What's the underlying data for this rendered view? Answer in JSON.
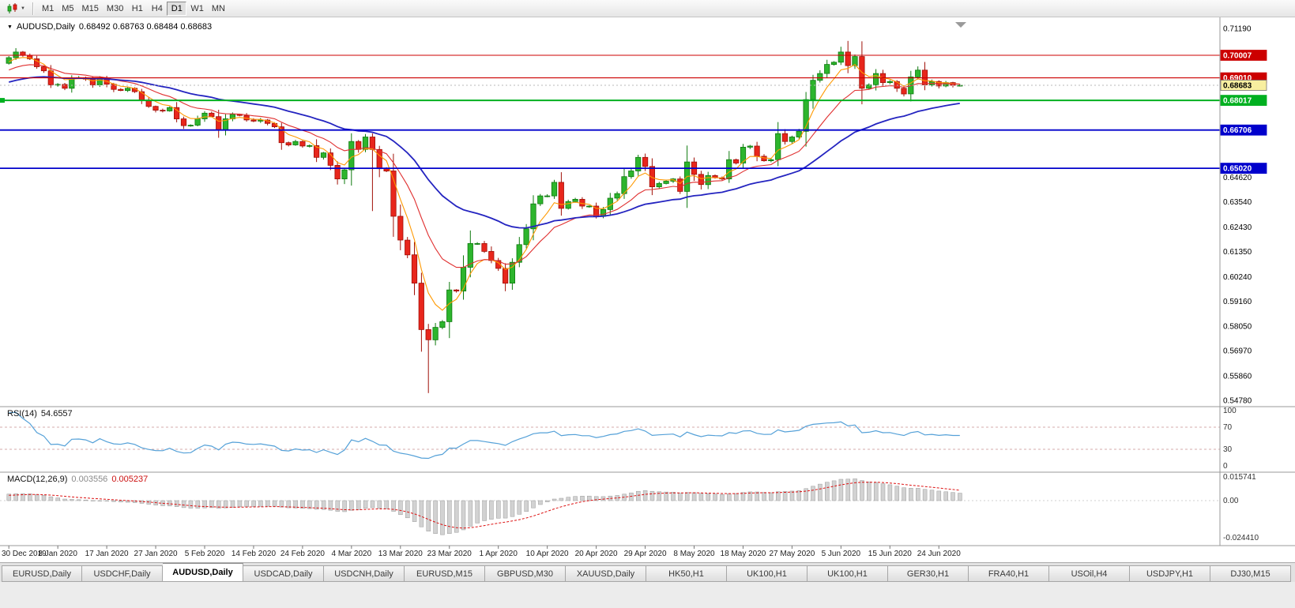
{
  "toolbar": {
    "periods": [
      "M1",
      "M5",
      "M15",
      "M30",
      "H1",
      "H4",
      "D1",
      "W1",
      "MN"
    ],
    "active_period": "D1"
  },
  "chart": {
    "title": "AUDUSD,Daily",
    "ohlc": "0.68492 0.68763 0.68484 0.68683"
  },
  "chart_data": {
    "type": "candlestick",
    "symbol": "AUDUSD",
    "timeframe": "Daily",
    "x_labels": [
      "30 Dec 2019",
      "8 Jan 2020",
      "17 Jan 2020",
      "27 Jan 2020",
      "5 Feb 2020",
      "14 Feb 2020",
      "24 Feb 2020",
      "4 Mar 2020",
      "13 Mar 2020",
      "23 Mar 2020",
      "1 Apr 2020",
      "10 Apr 2020",
      "20 Apr 2020",
      "29 Apr 2020",
      "8 May 2020",
      "18 May 2020",
      "27 May 2020",
      "5 Jun 2020",
      "15 Jun 2020",
      "24 Jun 2020"
    ],
    "x_label_every": 7,
    "first_open": 0.6965,
    "closes": [
      0.699,
      0.7015,
      0.7,
      0.6985,
      0.695,
      0.6932,
      0.687,
      0.6872,
      0.6855,
      0.69,
      0.6902,
      0.6895,
      0.687,
      0.69,
      0.6873,
      0.685,
      0.6845,
      0.6855,
      0.684,
      0.68,
      0.6775,
      0.6758,
      0.6755,
      0.677,
      0.672,
      0.669,
      0.6692,
      0.672,
      0.6745,
      0.673,
      0.667,
      0.672,
      0.674,
      0.6735,
      0.6715,
      0.671,
      0.6715,
      0.67,
      0.6685,
      0.6615,
      0.6605,
      0.662,
      0.66,
      0.6602,
      0.655,
      0.657,
      0.6515,
      0.6455,
      0.6495,
      0.662,
      0.6585,
      0.664,
      0.6585,
      0.65,
      0.649,
      0.629,
      0.6185,
      0.612,
      0.5995,
      0.579,
      0.5745,
      0.58,
      0.5825,
      0.5965,
      0.596,
      0.6065,
      0.617,
      0.617,
      0.6135,
      0.6095,
      0.606,
      0.5995,
      0.6087,
      0.6165,
      0.6235,
      0.6345,
      0.638,
      0.638,
      0.644,
      0.6325,
      0.6355,
      0.6365,
      0.6335,
      0.6335,
      0.629,
      0.632,
      0.637,
      0.639,
      0.6465,
      0.649,
      0.655,
      0.651,
      0.642,
      0.6435,
      0.6445,
      0.6455,
      0.64,
      0.653,
      0.6475,
      0.643,
      0.647,
      0.646,
      0.6455,
      0.654,
      0.6525,
      0.6595,
      0.66,
      0.6555,
      0.6535,
      0.654,
      0.6655,
      0.662,
      0.664,
      0.6665,
      0.6805,
      0.689,
      0.692,
      0.696,
      0.697,
      0.7015,
      0.6955,
      0.6995,
      0.6855,
      0.687,
      0.692,
      0.688,
      0.6885,
      0.6855,
      0.683,
      0.6905,
      0.6935,
      0.687,
      0.6885,
      0.6865,
      0.688,
      0.6868,
      0.68683
    ],
    "history_closes": [
      0.684,
      0.6835,
      0.683,
      0.6825,
      0.682,
      0.6815,
      0.681,
      0.6805,
      0.68,
      0.6795,
      0.679,
      0.6788,
      0.6785,
      0.678,
      0.6778,
      0.6775,
      0.6772,
      0.677,
      0.6768,
      0.6765,
      0.6762,
      0.676,
      0.6765,
      0.677,
      0.6775,
      0.678,
      0.6785,
      0.679,
      0.6795,
      0.68,
      0.6805,
      0.681,
      0.6815,
      0.682,
      0.6825,
      0.683,
      0.684,
      0.6845,
      0.685,
      0.6855,
      0.686,
      0.6865,
      0.687,
      0.688,
      0.689,
      0.69,
      0.691,
      0.692,
      0.693,
      0.694,
      0.695,
      0.696,
      0.6975,
      0.6985
    ],
    "wick_overrides": {
      "1": {
        "high": 0.7032
      },
      "52": {
        "low": 0.6313
      },
      "60": {
        "low": 0.551
      },
      "120": {
        "high": 0.7064
      }
    },
    "y_axis": {
      "max": 0.7119,
      "min": 0.5478,
      "ticks": [
        "0.71190",
        "0.64620",
        "0.63540",
        "0.62430",
        "0.61350",
        "0.60240",
        "0.59160",
        "0.58050",
        "0.56970",
        "0.55860",
        "0.54780"
      ]
    },
    "h_lines": [
      {
        "price": 0.70007,
        "label": "0.70007",
        "color": "#cc0000",
        "width": 1.1
      },
      {
        "price": 0.6901,
        "label": "0.69010",
        "color": "#cc0000",
        "width": 1.1
      },
      {
        "price": 0.68017,
        "label": "0.68017",
        "color": "#00b020",
        "width": 2
      },
      {
        "price": 0.66706,
        "label": "0.66706",
        "color": "#0000cc",
        "width": 1.8
      },
      {
        "price": 0.6502,
        "label": "0.65020",
        "color": "#0000cc",
        "width": 1.8
      }
    ],
    "current_price": {
      "value": 0.68683,
      "label": "0.68683",
      "tag_bg": "#f8efa0"
    },
    "moving_averages": [
      {
        "period": 5,
        "method": "ema",
        "color": "#ff9900",
        "width": 1.1
      },
      {
        "period": 13,
        "method": "ema",
        "color": "#e03030",
        "width": 1.1
      },
      {
        "period": 34,
        "method": "ema",
        "color": "#2424c0",
        "width": 1.8
      }
    ],
    "candle_colors": {
      "up": "#2db52d",
      "up_border": "#0e7a0e",
      "down": "#e8261c",
      "down_border": "#a01008"
    },
    "indicators": {
      "rsi": {
        "label": "RSI(14)",
        "value": "54.6557",
        "period": 14,
        "levels": [
          "100",
          "70",
          "30",
          "0"
        ],
        "line_color": "#55a1d8"
      },
      "macd": {
        "label": "MACD(12,26,9)",
        "value_main": "0.003556",
        "value_signal": "0.005237",
        "fast": 12,
        "slow": 26,
        "signal": 9,
        "scale_labels": [
          "0.015741",
          "0.00",
          "-0.024410"
        ],
        "hist_color": "#d2d2d2",
        "hist_border": "#9a9a9a",
        "signal_color": "#dd1111"
      }
    }
  },
  "tabs": {
    "active_index": 2,
    "items": [
      {
        "label": "EURUSD,Daily"
      },
      {
        "label": "USDCHF,Daily"
      },
      {
        "label": "AUDUSD,Daily"
      },
      {
        "label": "USDCAD,Daily"
      },
      {
        "label": "USDCNH,Daily"
      },
      {
        "label": "EURUSD,M15"
      },
      {
        "label": "GBPUSD,M30"
      },
      {
        "label": "XAUUSD,Daily"
      },
      {
        "label": "HK50,H1"
      },
      {
        "label": "UK100,H1"
      },
      {
        "label": "UK100,H1"
      },
      {
        "label": "GER30,H1"
      },
      {
        "label": "FRA40,H1"
      },
      {
        "label": "USOil,H4"
      },
      {
        "label": "USDJPY,H1"
      },
      {
        "label": "DJ30,M15"
      }
    ]
  }
}
